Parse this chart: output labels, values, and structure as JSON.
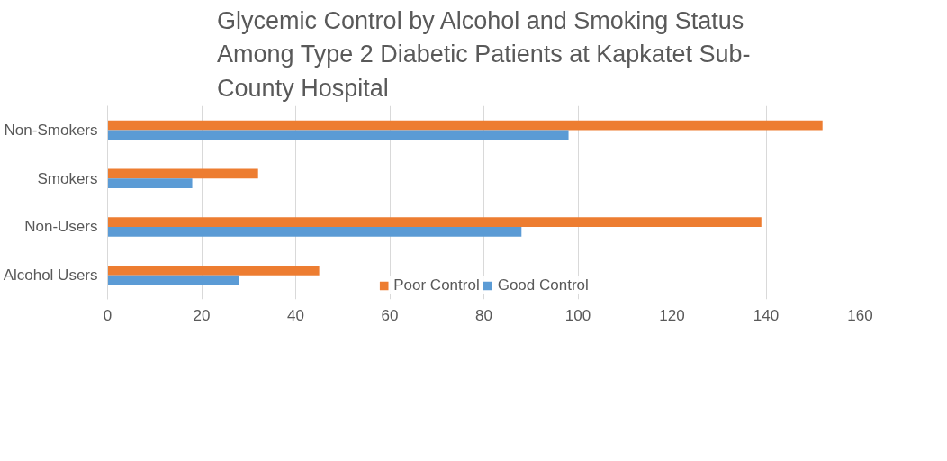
{
  "chart_data": {
    "type": "bar",
    "orientation": "horizontal",
    "title": "Glycemic Control by Alcohol and Smoking Status Among Type 2 Diabetic Patients at Kapkatet Sub-County Hospital",
    "categories": [
      "Non-Smokers",
      "Smokers",
      "Non-Users",
      "Alcohol Users"
    ],
    "series": [
      {
        "name": "Poor Control",
        "color": "#ed7d31",
        "values": [
          152,
          32,
          139,
          45
        ]
      },
      {
        "name": "Good Control",
        "color": "#5b9bd5",
        "values": [
          98,
          18,
          88,
          28
        ]
      }
    ],
    "xlim": [
      0,
      160
    ],
    "xticks": [
      0,
      20,
      40,
      60,
      80,
      100,
      120,
      140,
      160
    ],
    "grid": "x",
    "legend": "bottom"
  }
}
